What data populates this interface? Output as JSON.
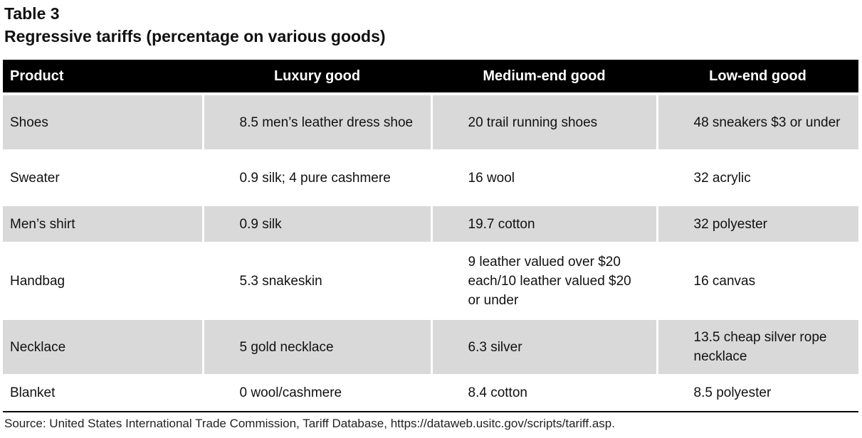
{
  "table_label": "Table 3",
  "table_title": "Regressive tariffs (percentage on various goods)",
  "columns": [
    "Product",
    "Luxury good",
    "Medium-end good",
    "Low-end good"
  ],
  "rows": [
    {
      "product": "Shoes",
      "luxury": "8.5 men’s leather dress shoe",
      "medium": "20 trail running shoes",
      "low": "48 sneakers $3 or under"
    },
    {
      "product": "Sweater",
      "luxury": "0.9 silk; 4 pure cashmere",
      "medium": "16 wool",
      "low": "32 acrylic"
    },
    {
      "product": "Men’s shirt",
      "luxury": "0.9 silk",
      "medium": "19.7 cotton",
      "low": "32 polyester"
    },
    {
      "product": "Handbag",
      "luxury": "5.3 snakeskin",
      "medium": "9 leather valued over $20 each/10 leather valued $20 or under",
      "low": "16 canvas"
    },
    {
      "product": "Necklace",
      "luxury": "5 gold necklace",
      "medium": "6.3 silver",
      "low": "13.5 cheap silver rope necklace"
    },
    {
      "product": "Blanket",
      "luxury": "0 wool/cashmere",
      "medium": "8.4 cotton",
      "low": "8.5 polyester"
    }
  ],
  "source": "Source: United States International Trade Commission, Tariff Database, https://dataweb.usitc.gov/scripts/tariff.asp.",
  "colors": {
    "header_bg": "#000000",
    "header_text": "#ffffff",
    "shaded_row": "#d9d9da",
    "plain_row": "#ffffff"
  }
}
